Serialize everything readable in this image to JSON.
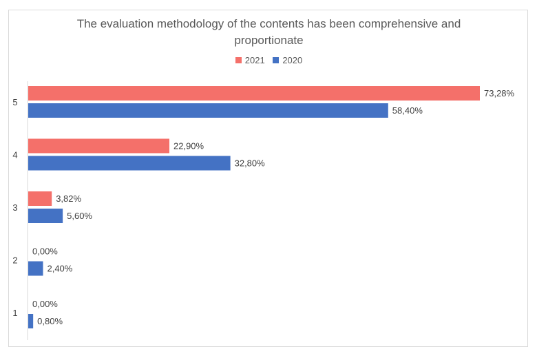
{
  "chart_data": {
    "type": "bar",
    "orientation": "horizontal",
    "title": "The evaluation methodology of the contents has been comprehensive and proportionate",
    "title_lines": [
      "The evaluation methodology of the contents has been comprehensive and",
      "proportionate"
    ],
    "categories": [
      "5",
      "4",
      "3",
      "2",
      "1"
    ],
    "series": [
      {
        "name": "2021",
        "color": "#f4706a",
        "values": [
          73.28,
          22.9,
          3.82,
          0.0,
          0.0
        ],
        "labels": [
          "73,28%",
          "22,90%",
          "3,82%",
          "0,00%",
          "0,00%"
        ]
      },
      {
        "name": "2020",
        "color": "#4472c4",
        "values": [
          58.4,
          32.8,
          5.6,
          2.4,
          0.8
        ],
        "labels": [
          "58,40%",
          "32,80%",
          "5,60%",
          "2,40%",
          "0,80%"
        ]
      }
    ],
    "xlim": [
      0,
      80
    ],
    "legend_position": "top",
    "grid": false
  }
}
